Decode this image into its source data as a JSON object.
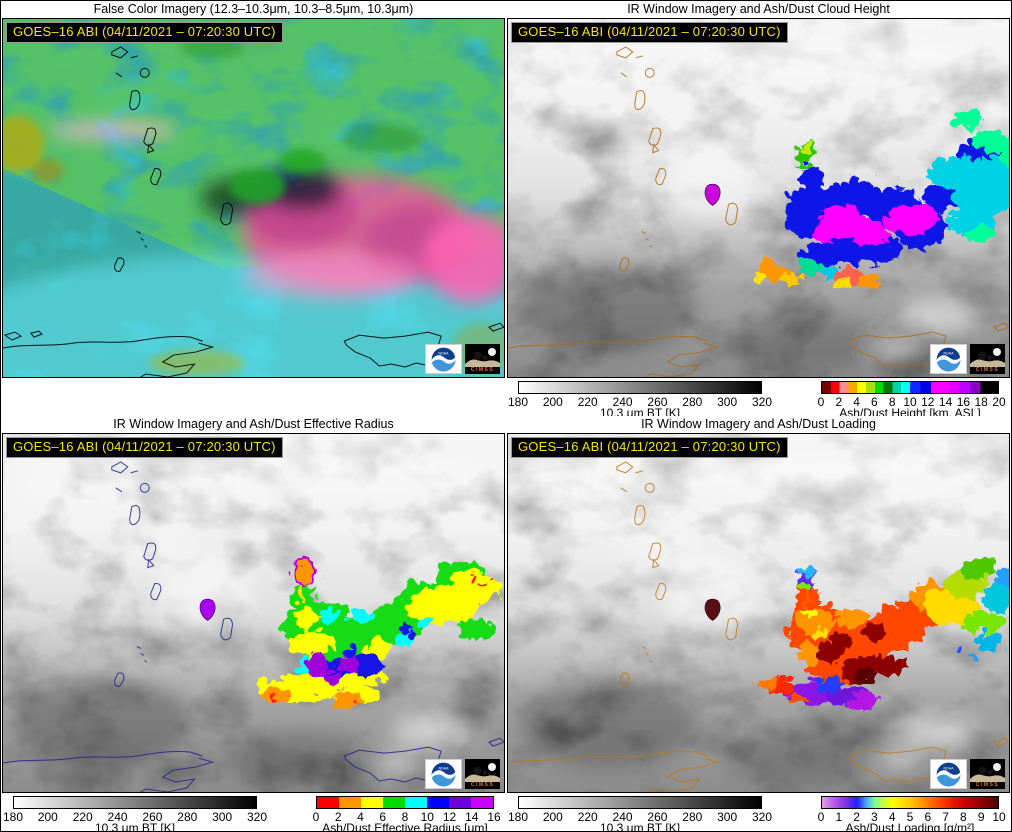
{
  "shared": {
    "timestamp": "GOES–16 ABI (04/11/2021 – 07:20:30 UTC)"
  },
  "branding": {
    "noaa": "NOAA",
    "cimss": "CIMSS"
  },
  "panels": [
    {
      "key": "false_color",
      "title": "False Color Imagery (12.3–10.3μm, 10.3–8.5μm, 10.3μm)"
    },
    {
      "key": "cloud_height",
      "title": "IR Window Imagery and Ash/Dust Cloud Height",
      "colorbar_bt": {
        "label": "10.3 μm BT [K]",
        "ticks": [
          180,
          200,
          220,
          240,
          260,
          280,
          300,
          320
        ],
        "gradient": [
          "#ffffff 0%",
          "#000000 100%"
        ]
      },
      "colorbar_product": {
        "label": "Ash/Dust Height [km, ASL]",
        "ticks": [
          0,
          2,
          4,
          6,
          8,
          10,
          12,
          14,
          16,
          18,
          20
        ],
        "range": [
          0,
          20
        ],
        "gradient": [
          "#780000 0% 5%",
          "#ff0000 5% 10%",
          "#ff8c8c 10% 15%",
          "#ffa500 15% 20%",
          "#ffff00 20% 25%",
          "#a8e010 25% 30%",
          "#00dc00 30% 35%",
          "#007800 35% 40%",
          "#00d2aa 40% 45%",
          "#00ffff 45% 50%",
          "#0a28ff 50% 56%",
          "#0000e6 56% 62%",
          "#ff00ff 62% 72%",
          "#e600ff 72% 78%",
          "#be00ff 78% 84%",
          "#8c00c8 84% 90%",
          "#000000 90% 100%"
        ]
      }
    },
    {
      "key": "effective_radius",
      "title": "IR Window Imagery and Ash/Dust Effective Radius",
      "colorbar_bt": {
        "label": "10.3 μm BT [K]",
        "ticks": [
          180,
          200,
          220,
          240,
          260,
          280,
          300,
          320
        ],
        "gradient": [
          "#ffffff 0%",
          "#000000 100%"
        ]
      },
      "colorbar_product": {
        "label": "Ash/Dust Effective Radius [μm]",
        "ticks": [
          0,
          2,
          4,
          6,
          8,
          10,
          12,
          14,
          16
        ],
        "range": [
          0,
          16
        ],
        "gradient": [
          "#ff0000 0% 12.5%",
          "#ff9600 12.5% 25%",
          "#ffff00 25% 37.5%",
          "#00dc00 37.5% 50%",
          "#00ffff 50% 62.5%",
          "#0000ff 62.5% 75%",
          "#6e00dc 75% 87.5%",
          "#c800ff 87.5% 100%"
        ]
      }
    },
    {
      "key": "loading",
      "title": "IR Window Imagery and Ash/Dust Loading",
      "colorbar_bt": {
        "label": "10.3 μm BT [K]",
        "ticks": [
          180,
          200,
          220,
          240,
          260,
          280,
          300,
          320
        ],
        "gradient": [
          "#ffffff 0%",
          "#000000 100%"
        ]
      },
      "colorbar_product": {
        "label": "Ash/Dust Loading [g/m²]",
        "ticks": [
          0,
          1,
          2,
          3,
          4,
          5,
          6,
          7,
          8,
          9,
          10
        ],
        "range": [
          0,
          10
        ],
        "gradient": [
          "#dca0e6 0%",
          "#b450e6 8%",
          "#7832e6 14%",
          "#2020ff 20%",
          "#46a0ff 25%",
          "#78ff96 30%",
          "#c8ff3c 35%",
          "#ffff00 40%",
          "#ffc800 50%",
          "#ff8c00 58%",
          "#ff4600 67%",
          "#e61400 75%",
          "#c80000 82%",
          "#960000 90%",
          "#640000 96%",
          "#500000 100%"
        ]
      }
    }
  ]
}
